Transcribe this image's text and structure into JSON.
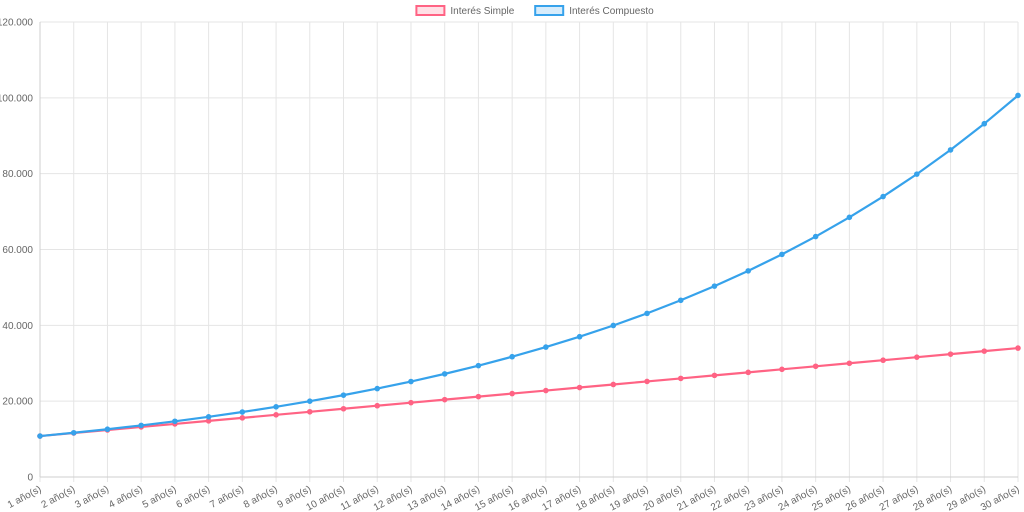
{
  "chart_data": {
    "type": "line",
    "title": "",
    "xlabel": "",
    "ylabel": "",
    "categories": [
      "1 año(s)",
      "2 año(s)",
      "3 año(s)",
      "4 año(s)",
      "5 año(s)",
      "6 año(s)",
      "7 año(s)",
      "8 año(s)",
      "9 año(s)",
      "10 año(s)",
      "11 año(s)",
      "12 año(s)",
      "13 año(s)",
      "14 año(s)",
      "15 año(s)",
      "16 año(s)",
      "17 año(s)",
      "18 año(s)",
      "19 año(s)",
      "20 año(s)",
      "21 año(s)",
      "22 año(s)",
      "23 año(s)",
      "24 año(s)",
      "25 año(s)",
      "26 año(s)",
      "27 año(s)",
      "28 año(s)",
      "29 año(s)",
      "30 año(s)"
    ],
    "ylim": [
      0,
      120000
    ],
    "yticks": [
      0,
      20000,
      40000,
      60000,
      80000,
      100000,
      120000
    ],
    "ytick_labels": [
      "0",
      "20.000",
      "40.000",
      "60.000",
      "80.000",
      "100.000",
      "120.000"
    ],
    "grid": true,
    "legend": "top-center",
    "series": [
      {
        "name": "Interés Simple",
        "color": "#ff6384",
        "values": [
          10800,
          11600,
          12400,
          13200,
          14000,
          14800,
          15600,
          16400,
          17200,
          18000,
          18800,
          19600,
          20400,
          21200,
          22000,
          22800,
          23600,
          24400,
          25200,
          26000,
          26800,
          27600,
          28400,
          29200,
          30000,
          30800,
          31600,
          32400,
          33200,
          34000
        ]
      },
      {
        "name": "Interés Compuesto",
        "color": "#36a2eb",
        "values": [
          10800,
          11664,
          12597,
          13605,
          14693,
          15869,
          17138,
          18509,
          19990,
          21589,
          23316,
          25182,
          27196,
          29372,
          31722,
          34259,
          37000,
          39960,
          43157,
          46610,
          50338,
          54365,
          58715,
          63412,
          68485,
          73964,
          79881,
          86271,
          93173,
          100627
        ]
      }
    ]
  }
}
